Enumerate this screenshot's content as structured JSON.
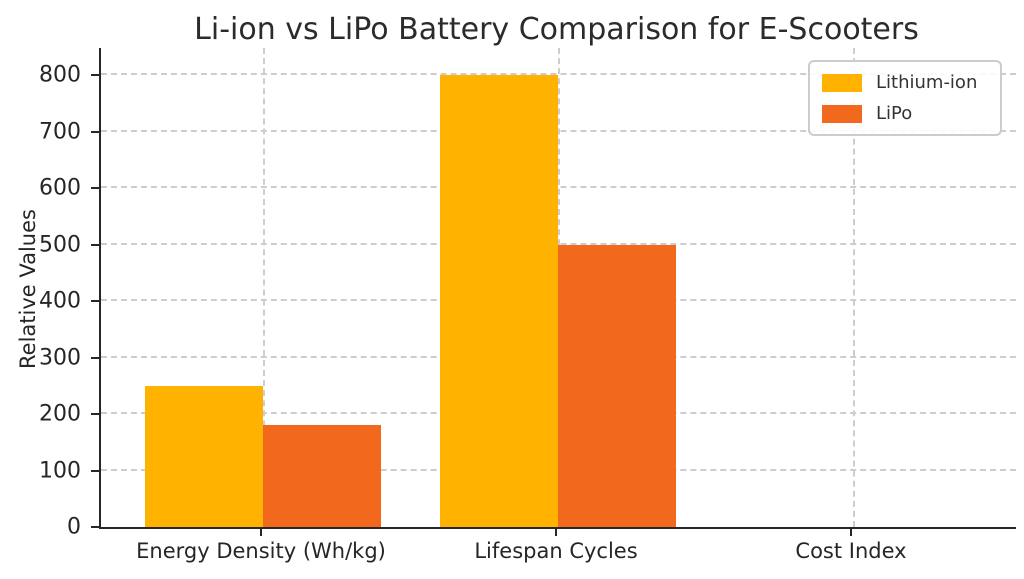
{
  "chart_data": {
    "type": "bar",
    "title": "Li-ion vs LiPo Battery Comparison for E-Scooters",
    "xlabel": "",
    "ylabel": "Relative Values",
    "categories": [
      "Energy Density (Wh/kg)",
      "Lifespan Cycles",
      "Cost Index"
    ],
    "series": [
      {
        "name": "Lithium-ion",
        "color": "#FFB300",
        "values": [
          250,
          800,
          0
        ]
      },
      {
        "name": "LiPo",
        "color": "#F2691E",
        "values": [
          180,
          500,
          0
        ]
      }
    ],
    "yticks": [
      0,
      100,
      200,
      300,
      400,
      500,
      600,
      700,
      800
    ],
    "ylim": [
      0,
      848
    ],
    "grid": {
      "show": true,
      "style": "dashed",
      "color": "#cdcdcd",
      "horizontal": true,
      "vertical": true
    },
    "legend_position": "upper right",
    "axis_color": "#262626",
    "background_color": "#ffffff"
  }
}
